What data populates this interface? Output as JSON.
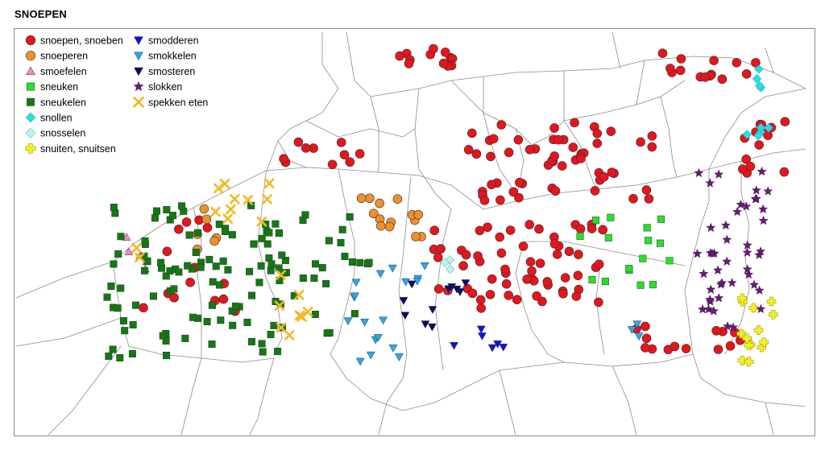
{
  "title": "SNOEPEN",
  "legend": [
    {
      "label": "snoepen, snoeben",
      "symbol": "circle",
      "color": "#e8141c",
      "icon": "red-circle-icon"
    },
    {
      "label": "snoeperen",
      "symbol": "circle",
      "color": "#f0902a",
      "icon": "orange-circle-icon"
    },
    {
      "label": "smoefelen",
      "symbol": "triangle-up",
      "color": "#f08cc0",
      "icon": "pink-triangle-icon"
    },
    {
      "label": "sneuken",
      "symbol": "square",
      "color": "#28e028",
      "icon": "light-green-square-icon"
    },
    {
      "label": "sneukelen",
      "symbol": "square",
      "color": "#127a12",
      "icon": "dark-green-square-icon"
    },
    {
      "label": "snollen",
      "symbol": "diamond",
      "color": "#20e0e8",
      "icon": "cyan-diamond-icon"
    },
    {
      "label": "snosselen",
      "symbol": "diamond",
      "color": "#b8f4f4",
      "icon": "light-cyan-diamond-icon"
    },
    {
      "label": "snuiten, snuitsen",
      "symbol": "cross",
      "color": "#f4f020",
      "icon": "yellow-cross-icon"
    },
    {
      "label": "smodderen",
      "symbol": "triangle-down",
      "color": "#1010e0",
      "icon": "blue-triangle-down-icon"
    },
    {
      "label": "smokkelen",
      "symbol": "triangle-down",
      "color": "#28a8f0",
      "icon": "sky-blue-triangle-down-icon"
    },
    {
      "label": "smosteren",
      "symbol": "triangle-down",
      "color": "#0a0a6a",
      "icon": "navy-triangle-down-icon"
    },
    {
      "label": "slokken",
      "symbol": "star",
      "color": "#6a1a78",
      "icon": "purple-star-icon"
    },
    {
      "label": "spekken eten",
      "symbol": "x",
      "color": "#f4b820",
      "icon": "orange-x-icon"
    }
  ]
}
